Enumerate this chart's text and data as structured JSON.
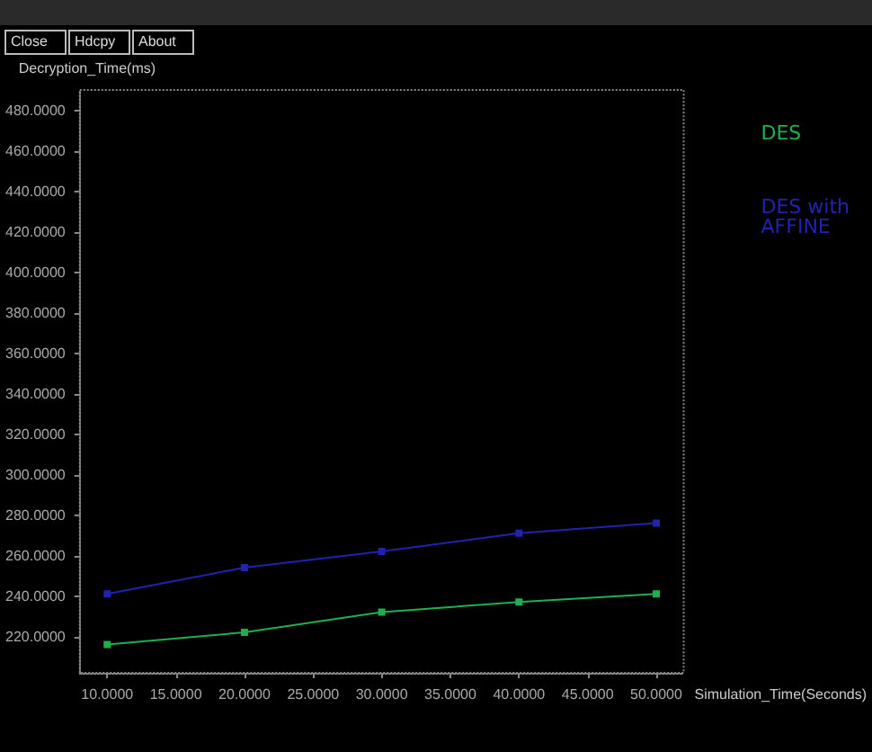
{
  "chart_data": {
    "type": "line",
    "ylabel": "Decryption_Time(ms)",
    "xlabel": "Simulation_Time(Seconds)",
    "annotations": [
      "Close",
      "Hdcpy",
      "About"
    ],
    "x": [
      10,
      20,
      30,
      40,
      50
    ],
    "series": [
      {
        "name": "DES",
        "color": "#1fae52",
        "values": [
          216,
          222,
          232,
          237,
          241
        ]
      },
      {
        "name": "DES with AFFINE",
        "color": "#2222b0",
        "values": [
          241,
          254,
          262,
          271,
          276
        ]
      }
    ],
    "xlim": [
      8,
      52
    ],
    "xticks": [
      {
        "value": 10,
        "label": "10.0000"
      },
      {
        "value": 15,
        "label": "15.0000"
      },
      {
        "value": 20,
        "label": "20.0000"
      },
      {
        "value": 25,
        "label": "25.0000"
      },
      {
        "value": 30,
        "label": "30.0000"
      },
      {
        "value": 35,
        "label": "35.0000"
      },
      {
        "value": 40,
        "label": "40.0000"
      },
      {
        "value": 45,
        "label": "45.0000"
      },
      {
        "value": 50,
        "label": "50.0000"
      }
    ],
    "ylim": [
      202,
      490
    ],
    "yticks": [
      {
        "value": 220,
        "label": "220.0000"
      },
      {
        "value": 240,
        "label": "240.0000"
      },
      {
        "value": 260,
        "label": "260.0000"
      },
      {
        "value": 280,
        "label": "280.0000"
      },
      {
        "value": 300,
        "label": "300.0000"
      },
      {
        "value": 320,
        "label": "320.0000"
      },
      {
        "value": 340,
        "label": "340.0000"
      },
      {
        "value": 360,
        "label": "360.0000"
      },
      {
        "value": 380,
        "label": "380.0000"
      },
      {
        "value": 400,
        "label": "400.0000"
      },
      {
        "value": 420,
        "label": "420.0000"
      },
      {
        "value": 440,
        "label": "440.0000"
      },
      {
        "value": 460,
        "label": "460.0000"
      },
      {
        "value": 480,
        "label": "480.0000"
      }
    ],
    "grid": false,
    "legend": "right",
    "marker": "square",
    "line_style": "solid"
  }
}
